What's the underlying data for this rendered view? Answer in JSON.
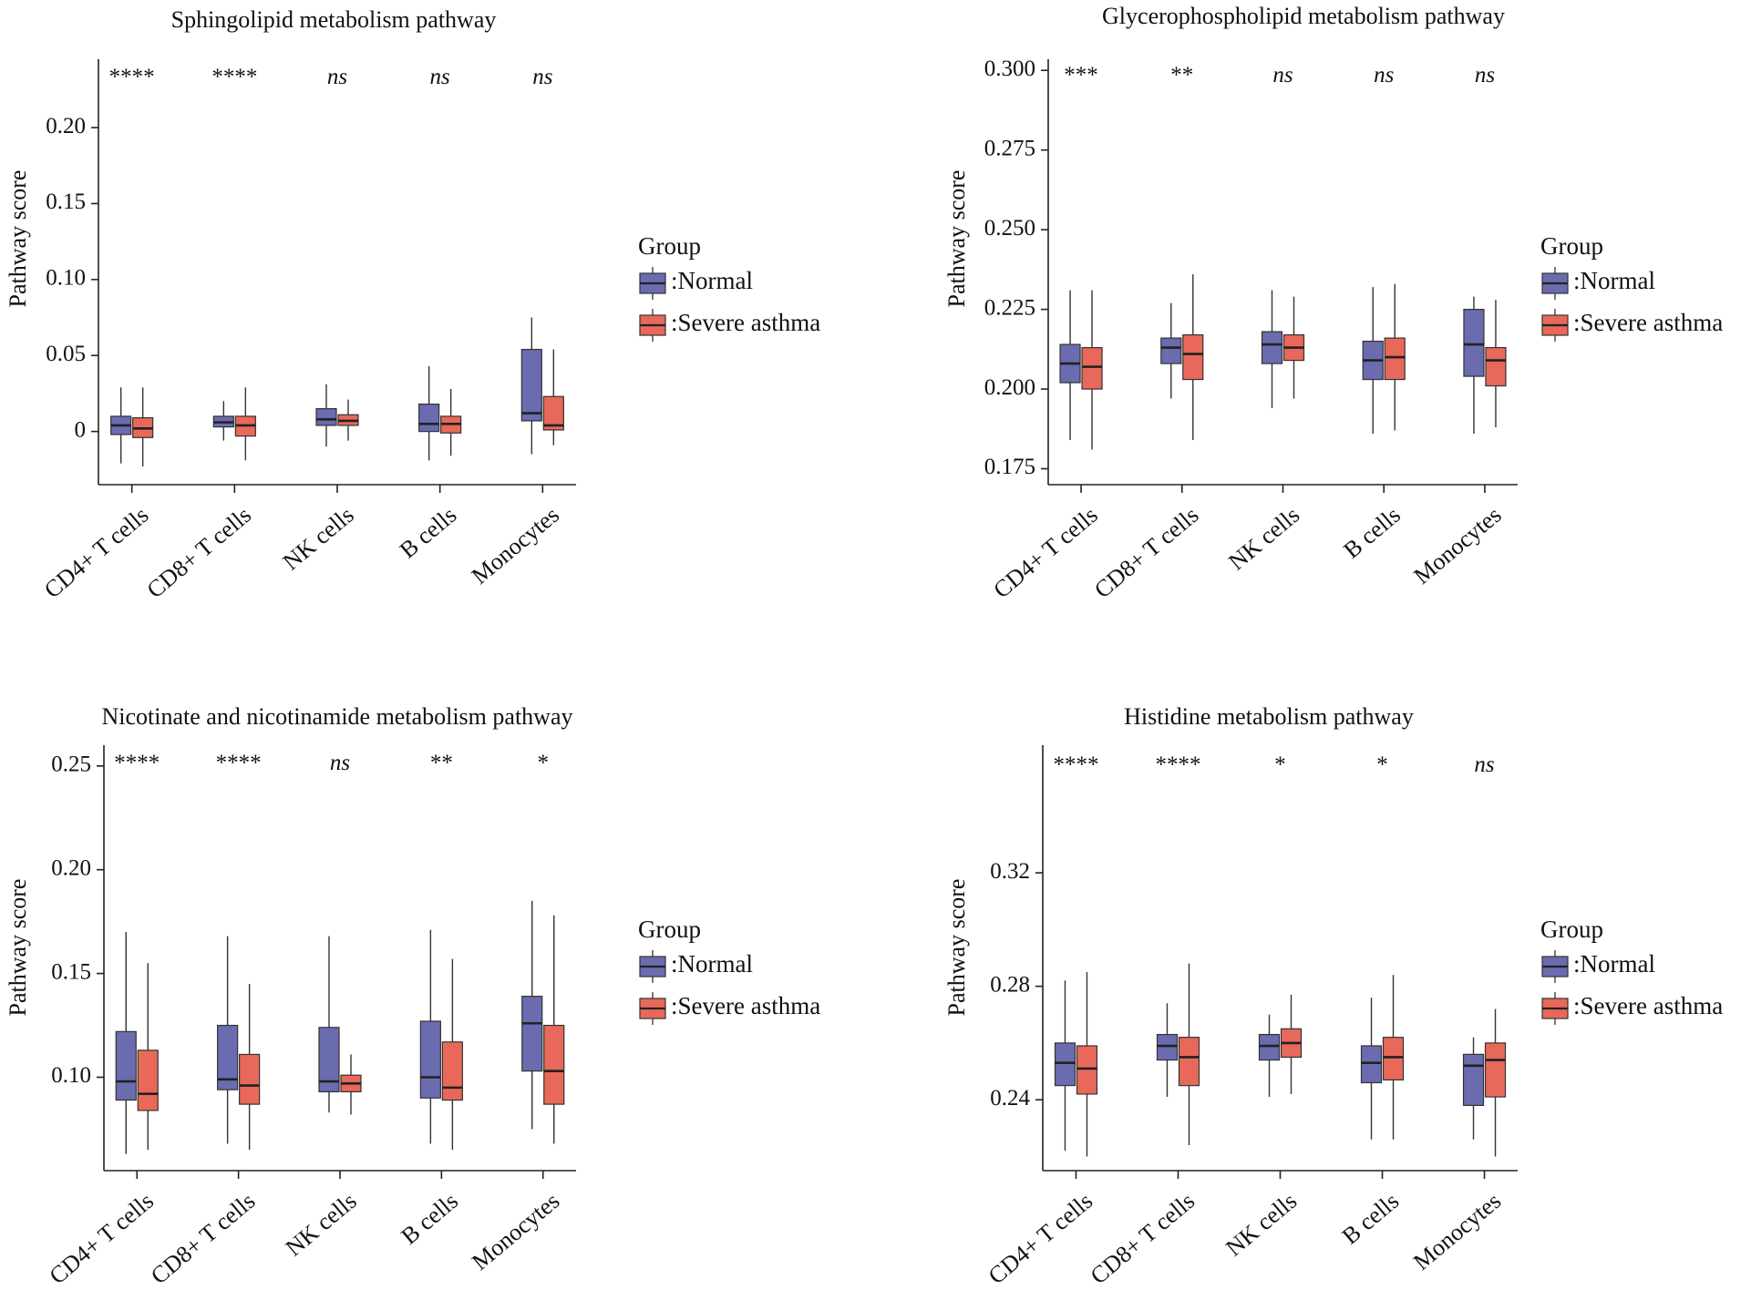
{
  "chart_data": [
    {
      "type": "box",
      "title": "Sphingolipid metabolism pathway",
      "ylabel": "Pathway score",
      "ylim": [
        -0.035,
        0.245
      ],
      "yticks": [
        0,
        0.05,
        0.1,
        0.15,
        0.2
      ],
      "ytick_labels": [
        "0",
        "0.05",
        "0.10",
        "0.15",
        "0.20"
      ],
      "categories": [
        "CD4+ T cells",
        "CD8+ T cells",
        "NK cells",
        "B cells",
        "Monocytes"
      ],
      "significance": [
        "****",
        "****",
        "ns",
        "ns",
        "ns"
      ],
      "series": [
        {
          "name": ":Normal",
          "color": "#6b6bb0",
          "boxes": [
            {
              "whislo": -0.021,
              "q1": -0.002,
              "med": 0.004,
              "q3": 0.01,
              "whishi": 0.029
            },
            {
              "whislo": -0.006,
              "q1": 0.003,
              "med": 0.006,
              "q3": 0.01,
              "whishi": 0.02
            },
            {
              "whislo": -0.01,
              "q1": 0.004,
              "med": 0.008,
              "q3": 0.015,
              "whishi": 0.031
            },
            {
              "whislo": -0.019,
              "q1": 0.0,
              "med": 0.005,
              "q3": 0.018,
              "whishi": 0.043
            },
            {
              "whislo": -0.015,
              "q1": 0.007,
              "med": 0.012,
              "q3": 0.054,
              "whishi": 0.075
            }
          ]
        },
        {
          "name": ":Severe asthma",
          "color": "#e8685a",
          "boxes": [
            {
              "whislo": -0.023,
              "q1": -0.004,
              "med": 0.002,
              "q3": 0.009,
              "whishi": 0.029
            },
            {
              "whislo": -0.019,
              "q1": -0.003,
              "med": 0.004,
              "q3": 0.01,
              "whishi": 0.029
            },
            {
              "whislo": -0.006,
              "q1": 0.004,
              "med": 0.007,
              "q3": 0.011,
              "whishi": 0.021
            },
            {
              "whislo": -0.016,
              "q1": -0.001,
              "med": 0.005,
              "q3": 0.01,
              "whishi": 0.028
            },
            {
              "whislo": -0.009,
              "q1": 0.001,
              "med": 0.004,
              "q3": 0.023,
              "whishi": 0.054
            }
          ]
        }
      ],
      "legend": {
        "title": "Group",
        "position": "right"
      }
    },
    {
      "type": "box",
      "title": "Glycerophospholipid metabolism pathway",
      "ylabel": "Pathway score",
      "ylim": [
        0.17,
        0.3035
      ],
      "yticks": [
        0.175,
        0.2,
        0.225,
        0.25,
        0.275,
        0.3
      ],
      "ytick_labels": [
        "0.175",
        "0.200",
        "0.225",
        "0.250",
        "0.275",
        "0.300"
      ],
      "categories": [
        "CD4+ T cells",
        "CD8+ T cells",
        "NK cells",
        "B cells",
        "Monocytes"
      ],
      "significance": [
        "***",
        "**",
        "ns",
        "ns",
        "ns"
      ],
      "series": [
        {
          "name": ":Normal",
          "color": "#6b6bb0",
          "boxes": [
            {
              "whislo": 0.184,
              "q1": 0.202,
              "med": 0.208,
              "q3": 0.214,
              "whishi": 0.231
            },
            {
              "whislo": 0.197,
              "q1": 0.208,
              "med": 0.213,
              "q3": 0.216,
              "whishi": 0.227
            },
            {
              "whislo": 0.194,
              "q1": 0.208,
              "med": 0.214,
              "q3": 0.218,
              "whishi": 0.231
            },
            {
              "whislo": 0.186,
              "q1": 0.203,
              "med": 0.209,
              "q3": 0.215,
              "whishi": 0.232
            },
            {
              "whislo": 0.186,
              "q1": 0.204,
              "med": 0.214,
              "q3": 0.225,
              "whishi": 0.229
            }
          ]
        },
        {
          "name": ":Severe asthma",
          "color": "#e8685a",
          "boxes": [
            {
              "whislo": 0.181,
              "q1": 0.2,
              "med": 0.207,
              "q3": 0.213,
              "whishi": 0.231
            },
            {
              "whislo": 0.184,
              "q1": 0.203,
              "med": 0.211,
              "q3": 0.217,
              "whishi": 0.236
            },
            {
              "whislo": 0.197,
              "q1": 0.209,
              "med": 0.213,
              "q3": 0.217,
              "whishi": 0.229
            },
            {
              "whislo": 0.187,
              "q1": 0.203,
              "med": 0.21,
              "q3": 0.216,
              "whishi": 0.233
            },
            {
              "whislo": 0.188,
              "q1": 0.201,
              "med": 0.209,
              "q3": 0.213,
              "whishi": 0.228
            }
          ]
        }
      ],
      "legend": {
        "title": "Group",
        "position": "right"
      }
    },
    {
      "type": "box",
      "title": "Nicotinate and nicotinamide metabolism pathway",
      "ylabel": "Pathway score",
      "ylim": [
        0.055,
        0.26
      ],
      "yticks": [
        0.1,
        0.15,
        0.2,
        0.25
      ],
      "ytick_labels": [
        "0.10",
        "0.15",
        "0.20",
        "0.25"
      ],
      "categories": [
        "CD4+ T cells",
        "CD8+ T cells",
        "NK cells",
        "B cells",
        "Monocytes"
      ],
      "significance": [
        "****",
        "****",
        "ns",
        "**",
        "*"
      ],
      "series": [
        {
          "name": ":Normal",
          "color": "#6b6bb0",
          "boxes": [
            {
              "whislo": 0.063,
              "q1": 0.089,
              "med": 0.098,
              "q3": 0.122,
              "whishi": 0.17
            },
            {
              "whislo": 0.068,
              "q1": 0.094,
              "med": 0.099,
              "q3": 0.125,
              "whishi": 0.168
            },
            {
              "whislo": 0.083,
              "q1": 0.093,
              "med": 0.098,
              "q3": 0.124,
              "whishi": 0.168
            },
            {
              "whislo": 0.068,
              "q1": 0.09,
              "med": 0.1,
              "q3": 0.127,
              "whishi": 0.171
            },
            {
              "whislo": 0.075,
              "q1": 0.103,
              "med": 0.126,
              "q3": 0.139,
              "whishi": 0.185
            }
          ]
        },
        {
          "name": ":Severe asthma",
          "color": "#e8685a",
          "boxes": [
            {
              "whislo": 0.065,
              "q1": 0.084,
              "med": 0.092,
              "q3": 0.113,
              "whishi": 0.155
            },
            {
              "whislo": 0.065,
              "q1": 0.087,
              "med": 0.096,
              "q3": 0.111,
              "whishi": 0.145
            },
            {
              "whislo": 0.082,
              "q1": 0.093,
              "med": 0.097,
              "q3": 0.101,
              "whishi": 0.111
            },
            {
              "whislo": 0.065,
              "q1": 0.089,
              "med": 0.095,
              "q3": 0.117,
              "whishi": 0.157
            },
            {
              "whislo": 0.068,
              "q1": 0.087,
              "med": 0.103,
              "q3": 0.125,
              "whishi": 0.178
            }
          ]
        }
      ],
      "legend": {
        "title": "Group",
        "position": "right"
      }
    },
    {
      "type": "box",
      "title": "Histidine metabolism pathway",
      "ylabel": "Pathway score",
      "ylim": [
        0.215,
        0.365
      ],
      "yticks": [
        0.24,
        0.28,
        0.32
      ],
      "ytick_labels": [
        "0.24",
        "0.28",
        "0.32"
      ],
      "categories": [
        "CD4+ T cells",
        "CD8+ T cells",
        "NK cells",
        "B cells",
        "Monocytes"
      ],
      "significance": [
        "****",
        "****",
        "*",
        "*",
        "ns"
      ],
      "series": [
        {
          "name": ":Normal",
          "color": "#6b6bb0",
          "boxes": [
            {
              "whislo": 0.222,
              "q1": 0.245,
              "med": 0.253,
              "q3": 0.26,
              "whishi": 0.282
            },
            {
              "whislo": 0.241,
              "q1": 0.254,
              "med": 0.259,
              "q3": 0.263,
              "whishi": 0.274
            },
            {
              "whislo": 0.241,
              "q1": 0.254,
              "med": 0.259,
              "q3": 0.263,
              "whishi": 0.27
            },
            {
              "whislo": 0.226,
              "q1": 0.246,
              "med": 0.253,
              "q3": 0.259,
              "whishi": 0.276
            },
            {
              "whislo": 0.226,
              "q1": 0.238,
              "med": 0.252,
              "q3": 0.256,
              "whishi": 0.262
            }
          ]
        },
        {
          "name": ":Severe asthma",
          "color": "#e8685a",
          "boxes": [
            {
              "whislo": 0.22,
              "q1": 0.242,
              "med": 0.251,
              "q3": 0.259,
              "whishi": 0.285
            },
            {
              "whislo": 0.224,
              "q1": 0.245,
              "med": 0.255,
              "q3": 0.262,
              "whishi": 0.288
            },
            {
              "whislo": 0.242,
              "q1": 0.255,
              "med": 0.26,
              "q3": 0.265,
              "whishi": 0.277
            },
            {
              "whislo": 0.226,
              "q1": 0.247,
              "med": 0.255,
              "q3": 0.262,
              "whishi": 0.284
            },
            {
              "whislo": 0.22,
              "q1": 0.241,
              "med": 0.254,
              "q3": 0.26,
              "whishi": 0.272
            }
          ]
        }
      ],
      "legend": {
        "title": "Group",
        "position": "right"
      }
    }
  ]
}
